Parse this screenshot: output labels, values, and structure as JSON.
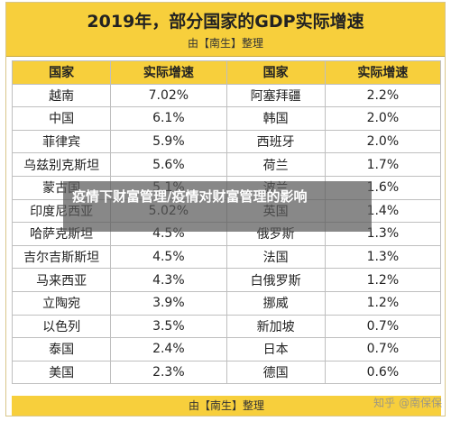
{
  "title": "2019年，部分国家的GDP实际增速",
  "subtitle": "由【南生】整理",
  "headers": [
    "国家",
    "实际增速",
    "国家",
    "实际增速"
  ],
  "rows": [
    [
      "越南",
      "7.02%",
      "阿塞拜疆",
      "2.2%"
    ],
    [
      "中国",
      "6.1%",
      "韩国",
      "2.0%"
    ],
    [
      "菲律宾",
      "5.9%",
      "西班牙",
      "2.0%"
    ],
    [
      "乌兹别克斯坦",
      "5.6%",
      "荷兰",
      "1.7%"
    ],
    [
      "蒙古国",
      "5.1%",
      "波兰",
      "1.6%"
    ],
    [
      "印度尼西亚",
      "5.02%",
      "英国",
      "1.4%"
    ],
    [
      "哈萨克斯坦",
      "4.5%",
      "俄罗斯",
      "1.3%"
    ],
    [
      "吉尔吉斯斯坦",
      "4.5%",
      "法国",
      "1.3%"
    ],
    [
      "马来西亚",
      "4.3%",
      "白俄罗斯",
      "1.2%"
    ],
    [
      "立陶宛",
      "3.9%",
      "挪威",
      "1.2%"
    ],
    [
      "以色列",
      "3.5%",
      "新加坡",
      "0.7%"
    ],
    [
      "泰国",
      "2.4%",
      "日本",
      "0.7%"
    ],
    [
      "美国",
      "2.3%",
      "德国",
      "0.6%"
    ]
  ],
  "footer": "由【南生】整理",
  "watermark": "知乎 @南保保",
  "overlay_text": "疫情下财富管理/疫情对财富管理的影响"
}
